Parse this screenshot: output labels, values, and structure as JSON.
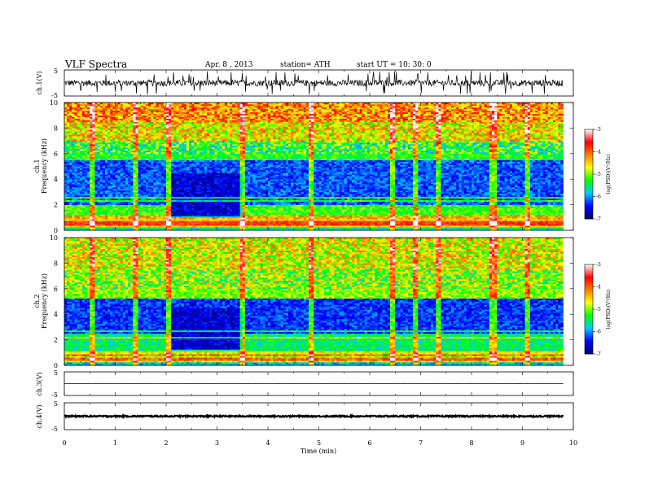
{
  "header": {
    "title": "VLF  Spectra",
    "date": "Apr. 8 , 2013",
    "station": "station= ATH",
    "start": "start  UT  =    10: 30: 0"
  },
  "chart_data": [
    {
      "type": "line",
      "title": "",
      "xlabel": "",
      "ylabel": "ch.1(V)",
      "yticks": [
        "5",
        "-5"
      ],
      "ylim": [
        -5,
        5
      ],
      "xlim": [
        0,
        10
      ],
      "data_xlim": [
        0,
        9.8
      ],
      "baseline": 0,
      "noise_amplitude": 1.2,
      "spike_amplitude": 4.5,
      "color": "#000000"
    },
    {
      "type": "heatmap",
      "ylabel": "Frequency  (kHz)",
      "channel_label": "ch.1",
      "xlim": [
        0,
        10
      ],
      "data_xlim": [
        0,
        9.8
      ],
      "ylim": [
        0,
        10
      ],
      "yticks": [
        "0",
        "2",
        "4",
        "6",
        "8",
        "10"
      ],
      "colorbar": {
        "label": "log(PSD)(V²/Hz)",
        "range": [
          -7,
          -3
        ],
        "ticks": [
          "-3",
          "-4",
          "-5",
          "-6",
          "-7"
        ],
        "colors": [
          "#000070",
          "#0000ff",
          "#00c8ff",
          "#00ff00",
          "#ffff00",
          "#ff8000",
          "#ff0000",
          "#ffffff"
        ]
      },
      "bands": [
        {
          "f0": 0,
          "f1": 0.3,
          "value": -5.6
        },
        {
          "f0": 0.3,
          "f1": 0.9,
          "value": -4.6
        },
        {
          "f0": 0.9,
          "f1": 2.0,
          "value": -5.2
        },
        {
          "f0": 2.0,
          "f1": 5.5,
          "value": -6.2
        },
        {
          "f0": 5.5,
          "f1": 7.0,
          "value": -5.3
        },
        {
          "f0": 7.0,
          "f1": 8.5,
          "value": -4.6
        },
        {
          "f0": 8.5,
          "f1": 10.0,
          "value": -4.2
        }
      ],
      "quiet_interval": {
        "t0": 2.1,
        "t1": 3.5,
        "f0": 1.0,
        "f1": 4.5,
        "value": -6.6
      },
      "harmonic_lines_khz": [
        0.5,
        0.7,
        1.0,
        2.3,
        2.6
      ],
      "vertical_burst_times_min": [
        0.55,
        1.4,
        2.05,
        3.5,
        4.85,
        6.45,
        6.9,
        7.35,
        8.4,
        8.45,
        9.1
      ]
    },
    {
      "type": "heatmap",
      "ylabel": "Frequency  (kHz)",
      "channel_label": "ch.2",
      "xlim": [
        0,
        10
      ],
      "data_xlim": [
        0,
        9.8
      ],
      "ylim": [
        0,
        10
      ],
      "yticks": [
        "0",
        "2",
        "4",
        "6",
        "8",
        "10"
      ],
      "colorbar": {
        "label": "log(PSD)(V²/Hz)",
        "range": [
          -7,
          -3
        ],
        "ticks": [
          "-3",
          "-4",
          "-5",
          "-6",
          "-7"
        ],
        "colors": [
          "#000070",
          "#0000ff",
          "#00c8ff",
          "#00ff00",
          "#ffff00",
          "#ff8000",
          "#ff0000",
          "#ffffff"
        ]
      },
      "bands": [
        {
          "f0": 0,
          "f1": 0.3,
          "value": -5.8
        },
        {
          "f0": 0.3,
          "f1": 1.0,
          "value": -4.9
        },
        {
          "f0": 1.0,
          "f1": 2.5,
          "value": -5.5
        },
        {
          "f0": 2.5,
          "f1": 5.2,
          "value": -6.3
        },
        {
          "f0": 5.2,
          "f1": 7.5,
          "value": -5.0
        },
        {
          "f0": 7.5,
          "f1": 10.0,
          "value": -4.7
        }
      ],
      "quiet_interval": {
        "t0": 2.1,
        "t1": 3.5,
        "f0": 1.2,
        "f1": 4.5,
        "value": -6.6
      },
      "harmonic_lines_khz": [
        0.5,
        0.8,
        1.1,
        2.2,
        2.7
      ],
      "vertical_burst_times_min": [
        0.55,
        1.4,
        2.05,
        3.5,
        4.85,
        6.45,
        6.9,
        7.35,
        8.4,
        8.45,
        9.1
      ]
    },
    {
      "type": "line",
      "ylabel": "ch.3(V)",
      "yticks": [
        "5",
        "-5"
      ],
      "ylim": [
        -5,
        5
      ],
      "xlim": [
        0,
        10
      ],
      "data_xlim": [
        0,
        9.8
      ],
      "baseline": 0,
      "noise_amplitude": 0.05,
      "spike_amplitude": 0,
      "color": "#000000"
    },
    {
      "type": "line",
      "ylabel": "ch.4(V)",
      "yticks": [
        "5",
        "-5"
      ],
      "ylim": [
        -5,
        5
      ],
      "xlim": [
        0,
        10
      ],
      "data_xlim": [
        0,
        9.8
      ],
      "baseline": 0,
      "noise_amplitude": 0.25,
      "spike_amplitude": 0,
      "color": "#000000",
      "xlabel": "Time  (min)",
      "xticks": [
        "0",
        "1",
        "2",
        "3",
        "4",
        "5",
        "6",
        "7",
        "8",
        "9",
        "10"
      ]
    }
  ]
}
